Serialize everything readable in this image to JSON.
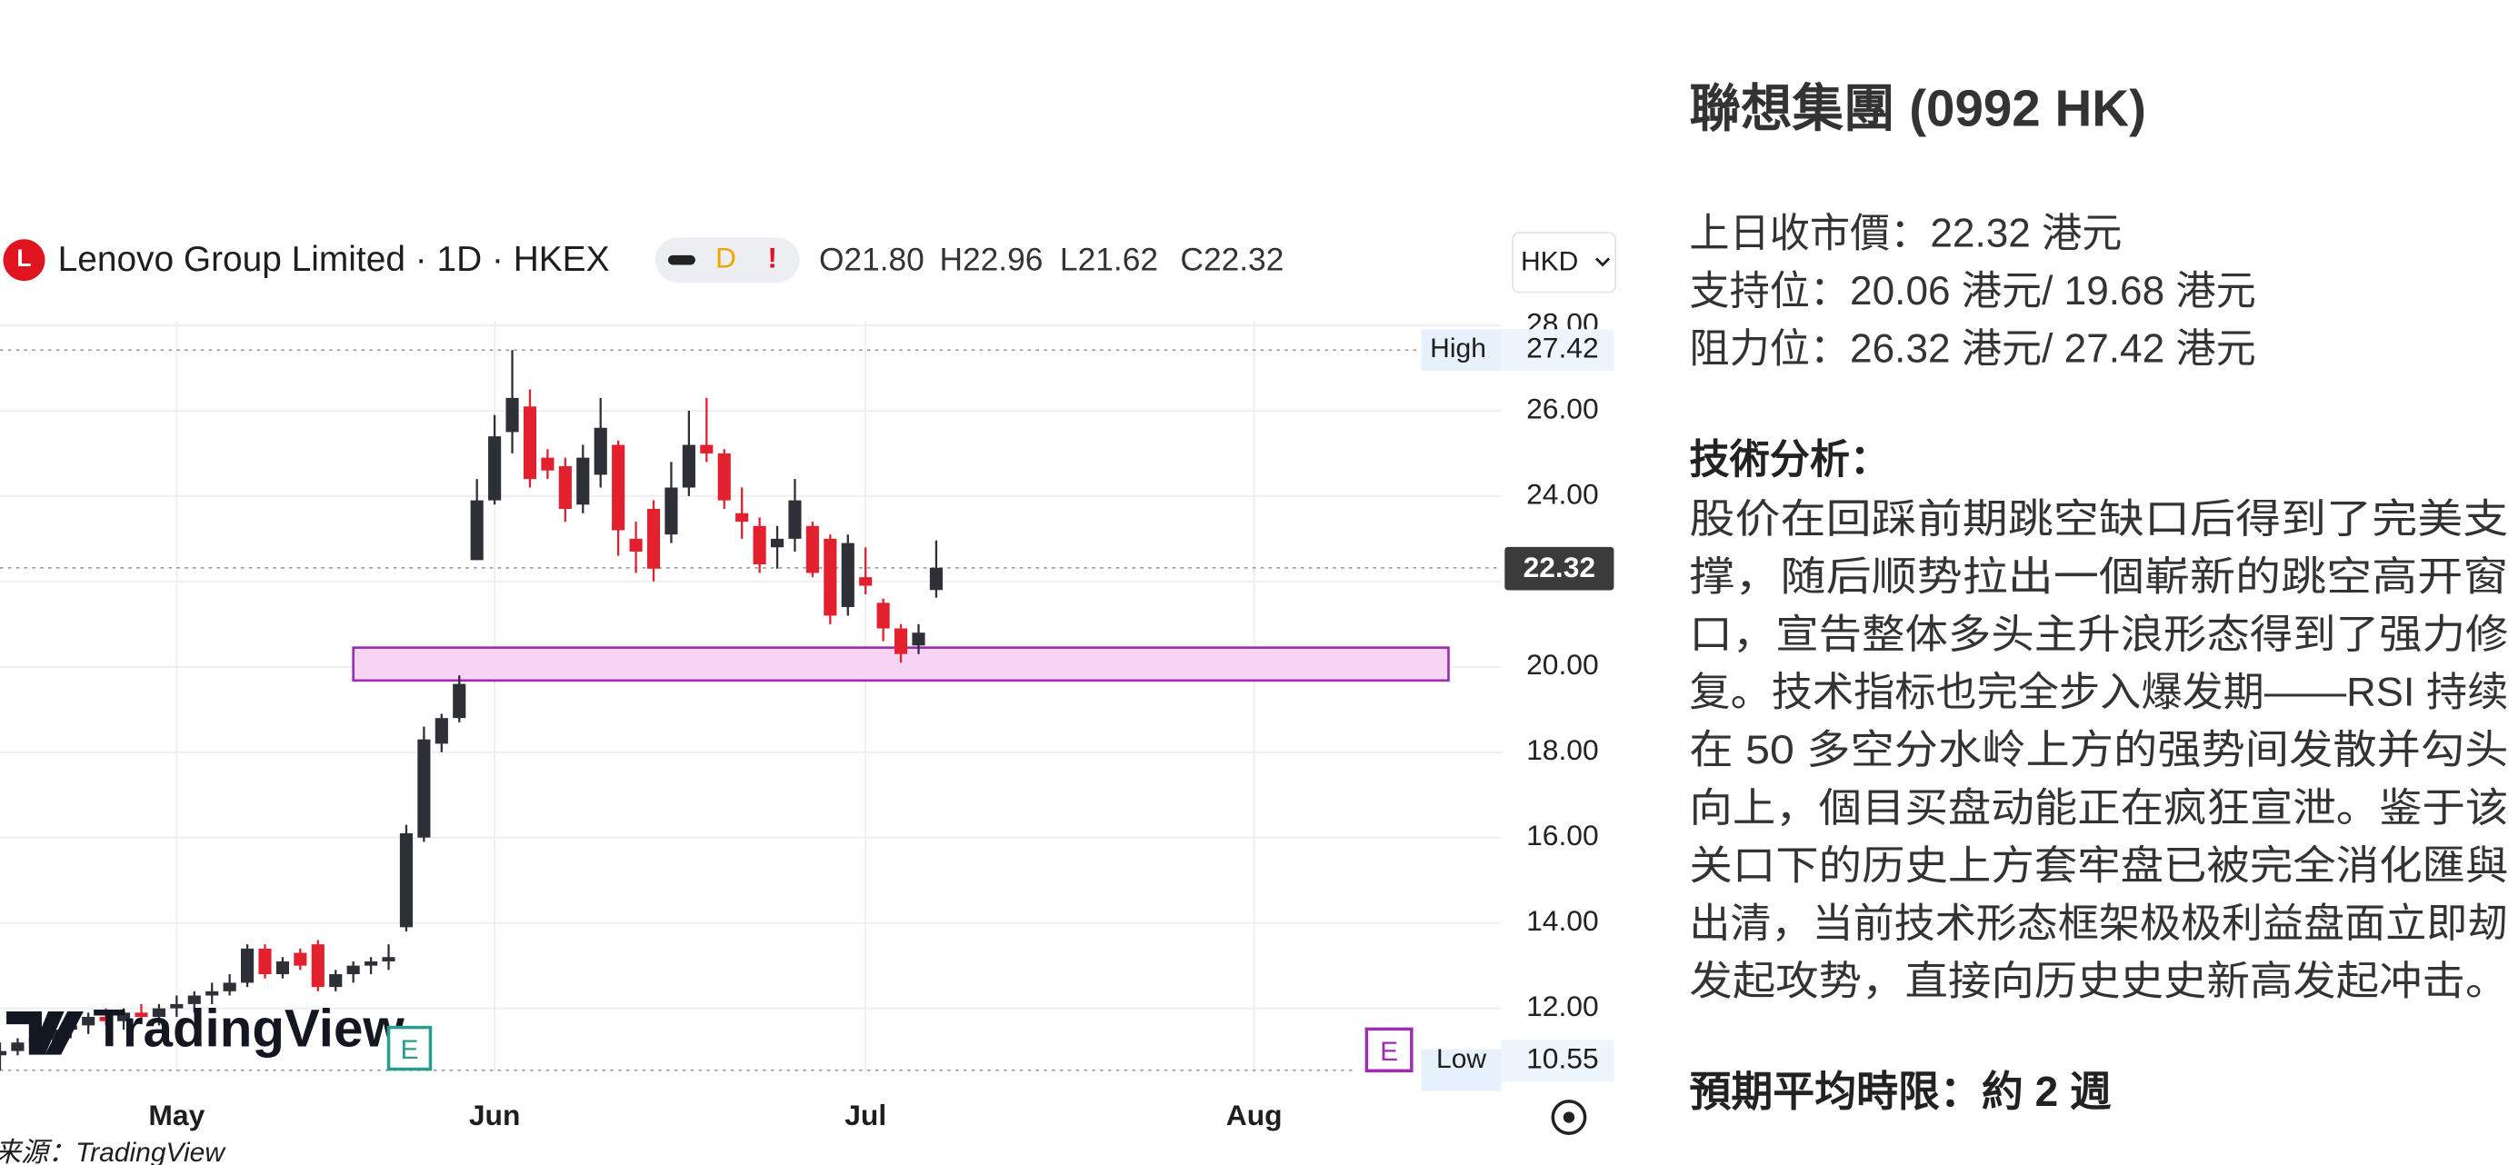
{
  "chart_data": {
    "type": "candlestick",
    "title": "Lenovo Group Limited · 1D · HKEX",
    "ohlc_labels": [
      "O21.80",
      "H22.96",
      "L21.62",
      "C22.32"
    ],
    "currency": "HKD",
    "categories": [
      null,
      null,
      null,
      null,
      null,
      null,
      null,
      null,
      null,
      null,
      "May",
      null,
      null,
      null,
      null,
      null,
      null,
      null,
      null,
      null,
      null,
      null,
      null,
      null,
      null,
      null,
      null,
      null,
      "Jun",
      null,
      null,
      null,
      null,
      null,
      null,
      null,
      null,
      null,
      null,
      null,
      null,
      null,
      null,
      null,
      null,
      null,
      null,
      null,
      null,
      "Jul",
      null,
      null,
      null,
      null,
      null,
      null,
      null,
      null,
      null,
      null,
      null,
      null,
      null,
      null,
      null,
      null,
      null,
      null,
      null,
      null,
      null,
      "Aug",
      null,
      null,
      null,
      null,
      null,
      null,
      null,
      null,
      null,
      null,
      null,
      null,
      null
    ],
    "open": [
      10.9,
      11.0,
      11.2,
      11.3,
      11.5,
      11.6,
      11.8,
      11.7,
      11.9,
      11.8,
      12.0,
      12.1,
      12.3,
      12.4,
      12.6,
      13.4,
      12.8,
      13.3,
      13.5,
      12.5,
      12.8,
      13.0,
      13.1,
      13.9,
      16.0,
      18.2,
      18.8,
      22.5,
      23.9,
      25.5,
      26.1,
      24.9,
      24.7,
      23.8,
      24.5,
      25.2,
      23.0,
      23.7,
      23.1,
      24.2,
      25.2,
      25.0,
      23.6,
      23.3,
      22.8,
      23.0,
      23.3,
      23.0,
      21.4,
      22.1,
      21.5,
      20.9,
      20.5,
      21.8,
      null,
      null,
      null,
      null,
      null,
      null,
      null,
      null,
      null,
      null,
      null,
      null,
      null,
      null,
      null,
      null,
      null,
      null,
      null,
      null,
      null,
      null,
      null,
      null,
      null,
      null,
      null,
      null,
      null,
      null,
      null
    ],
    "high": [
      11.2,
      11.3,
      11.5,
      11.6,
      11.8,
      11.9,
      12.0,
      12.0,
      12.1,
      12.1,
      12.3,
      12.4,
      12.6,
      12.8,
      13.5,
      13.5,
      13.2,
      13.4,
      13.6,
      12.9,
      13.1,
      13.2,
      13.5,
      16.3,
      18.6,
      18.9,
      19.8,
      24.4,
      25.9,
      27.42,
      26.5,
      25.1,
      24.9,
      25.2,
      26.3,
      25.3,
      23.4,
      23.9,
      24.8,
      26.0,
      26.3,
      25.1,
      24.2,
      23.5,
      23.3,
      24.4,
      23.4,
      23.1,
      23.1,
      22.8,
      21.6,
      21.0,
      21.0,
      22.96,
      null,
      null,
      null,
      null,
      null,
      null,
      null,
      null,
      null,
      null,
      null,
      null,
      null,
      null,
      null,
      null,
      null,
      null,
      null,
      null,
      null,
      null,
      null,
      null,
      null,
      null,
      null,
      null,
      null,
      null,
      null
    ],
    "low": [
      10.55,
      10.9,
      11.0,
      11.1,
      11.3,
      11.4,
      11.6,
      11.5,
      11.7,
      11.6,
      11.8,
      11.9,
      12.1,
      12.3,
      12.5,
      12.7,
      12.7,
      12.9,
      12.4,
      12.4,
      12.6,
      12.8,
      12.9,
      13.8,
      15.9,
      18.0,
      18.7,
      22.5,
      23.8,
      25.0,
      24.2,
      24.4,
      23.4,
      23.6,
      24.2,
      22.6,
      22.2,
      22.0,
      22.9,
      24.0,
      24.8,
      23.7,
      23.0,
      22.2,
      22.3,
      22.7,
      22.1,
      21.0,
      21.2,
      21.7,
      20.6,
      20.1,
      20.3,
      21.62,
      null,
      null,
      null,
      null,
      null,
      null,
      null,
      null,
      null,
      null,
      null,
      null,
      null,
      null,
      null,
      null,
      null,
      null,
      null,
      null,
      null,
      null,
      null,
      null,
      null,
      null,
      null,
      null,
      null,
      null,
      null
    ],
    "close": [
      11.0,
      11.2,
      11.3,
      11.5,
      11.6,
      11.8,
      11.7,
      11.9,
      11.8,
      12.0,
      12.1,
      12.3,
      12.4,
      12.6,
      13.4,
      12.8,
      13.1,
      13.0,
      12.5,
      12.8,
      13.0,
      13.1,
      13.2,
      16.1,
      18.3,
      18.8,
      19.6,
      23.9,
      25.4,
      26.3,
      24.4,
      24.6,
      23.7,
      24.9,
      25.6,
      23.2,
      22.7,
      22.3,
      24.2,
      25.2,
      25.0,
      23.9,
      23.4,
      22.4,
      23.0,
      23.9,
      22.2,
      21.2,
      22.9,
      21.9,
      20.9,
      20.3,
      20.8,
      22.32,
      null,
      null,
      null,
      null,
      null,
      null,
      null,
      null,
      null,
      null,
      null,
      null,
      null,
      null,
      null,
      null,
      null,
      null,
      null,
      null,
      null,
      null,
      null,
      null,
      null,
      null,
      null,
      null,
      null,
      null,
      null
    ],
    "up_color": "#2e3038",
    "down_color": "#e2202e",
    "ylim": [
      10.5,
      28.1
    ],
    "yticks": [
      {
        "value": 12,
        "label": "12.00"
      },
      {
        "value": 14,
        "label": "14.00"
      },
      {
        "value": 16,
        "label": "16.00"
      },
      {
        "value": 18,
        "label": "18.00"
      },
      {
        "value": 20,
        "label": "20.00"
      },
      {
        "value": 22,
        "label": "22.00"
      },
      {
        "value": 24,
        "label": "24.00"
      },
      {
        "value": 26,
        "label": "26.00"
      },
      {
        "value": 28,
        "label": "28.00"
      }
    ],
    "grid": true,
    "high_marker": {
      "label": "High",
      "value": 27.42
    },
    "low_marker": {
      "label": "Low",
      "value": 10.55
    },
    "last_price": 22.32,
    "zone": {
      "low": 19.68,
      "high": 20.45,
      "start": 20,
      "end": 82,
      "color": "#f7d4f4",
      "border": "#9b2fae"
    },
    "watermark": "TradingView"
  },
  "source": "来源：TradingView",
  "panel": {
    "title": "聯想集團 (0992 HK)",
    "lines": [
      "上日收市價：22.32 港元",
      "支持位：20.06 港元/ 19.68 港元",
      "阻力位：26.32 港元/ 27.42 港元"
    ],
    "analysis_heading": "技術分析：",
    "analysis_lines": [
      "股价在回踩前期跳空缺口后得到了完美支",
      "撑，随后顺势拉出一個嶄新的跳空高开窗",
      "口，宣告整体多头主升浪形态得到了强力修",
      "复。技术指标也完全步入爆发期——RSI 持续",
      "在 50 多空分水岭上方的强势间发散并勾头",
      "向上，個目买盘动能正在疯狂宣泄。鉴于该",
      "关口下的历史上方套牢盘已被完全消化匯與",
      "出清，当前技术形态框架极极利益盘面立即刼",
      "发起攻势，直接向历史史史新高发起冲击。"
    ],
    "horizon": "預期平均時限：約 2 週"
  }
}
